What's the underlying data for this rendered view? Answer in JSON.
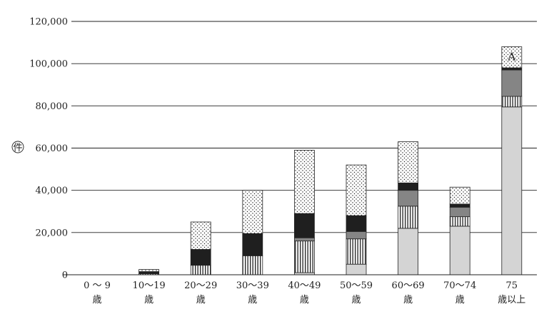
{
  "chart_data": {
    "type": "bar",
    "stacked": true,
    "ylabel": "件",
    "ylim": [
      0,
      120000
    ],
    "yticks": [
      0,
      20000,
      40000,
      60000,
      80000,
      100000,
      120000
    ],
    "ytick_labels": [
      "0",
      "20,000",
      "40,000",
      "60,000",
      "80,000",
      "100,000",
      "120,000"
    ],
    "grid": true,
    "categories": [
      {
        "line1": "0 ～ 9",
        "line2": "歳"
      },
      {
        "line1": "10～19",
        "line2": "歳"
      },
      {
        "line1": "20～29",
        "line2": "歳"
      },
      {
        "line1": "30～39",
        "line2": "歳"
      },
      {
        "line1": "40～49",
        "line2": "歳"
      },
      {
        "line1": "50～59",
        "line2": "歳"
      },
      {
        "line1": "60～69",
        "line2": "歳"
      },
      {
        "line1": "70～74",
        "line2": "歳"
      },
      {
        "line1": "75",
        "line2": "歳以上"
      }
    ],
    "series": [
      {
        "pattern": "light-gray",
        "values": [
          0,
          0,
          0,
          0,
          1000,
          5000,
          22000,
          23000,
          79500
        ]
      },
      {
        "pattern": "vertical-stripes",
        "values": [
          0,
          500,
          4500,
          9000,
          15000,
          12000,
          10500,
          4500,
          5000
        ]
      },
      {
        "pattern": "gray",
        "values": [
          0,
          0,
          0,
          0,
          1500,
          3500,
          7500,
          4500,
          12500
        ]
      },
      {
        "pattern": "black",
        "values": [
          0,
          1000,
          7500,
          10500,
          11500,
          7500,
          3500,
          1500,
          1000
        ]
      },
      {
        "pattern": "dots",
        "values": [
          0,
          1000,
          13000,
          20500,
          30000,
          24000,
          19500,
          8000,
          10000
        ]
      }
    ],
    "annotation": {
      "text": "A",
      "category_index": 8
    }
  }
}
